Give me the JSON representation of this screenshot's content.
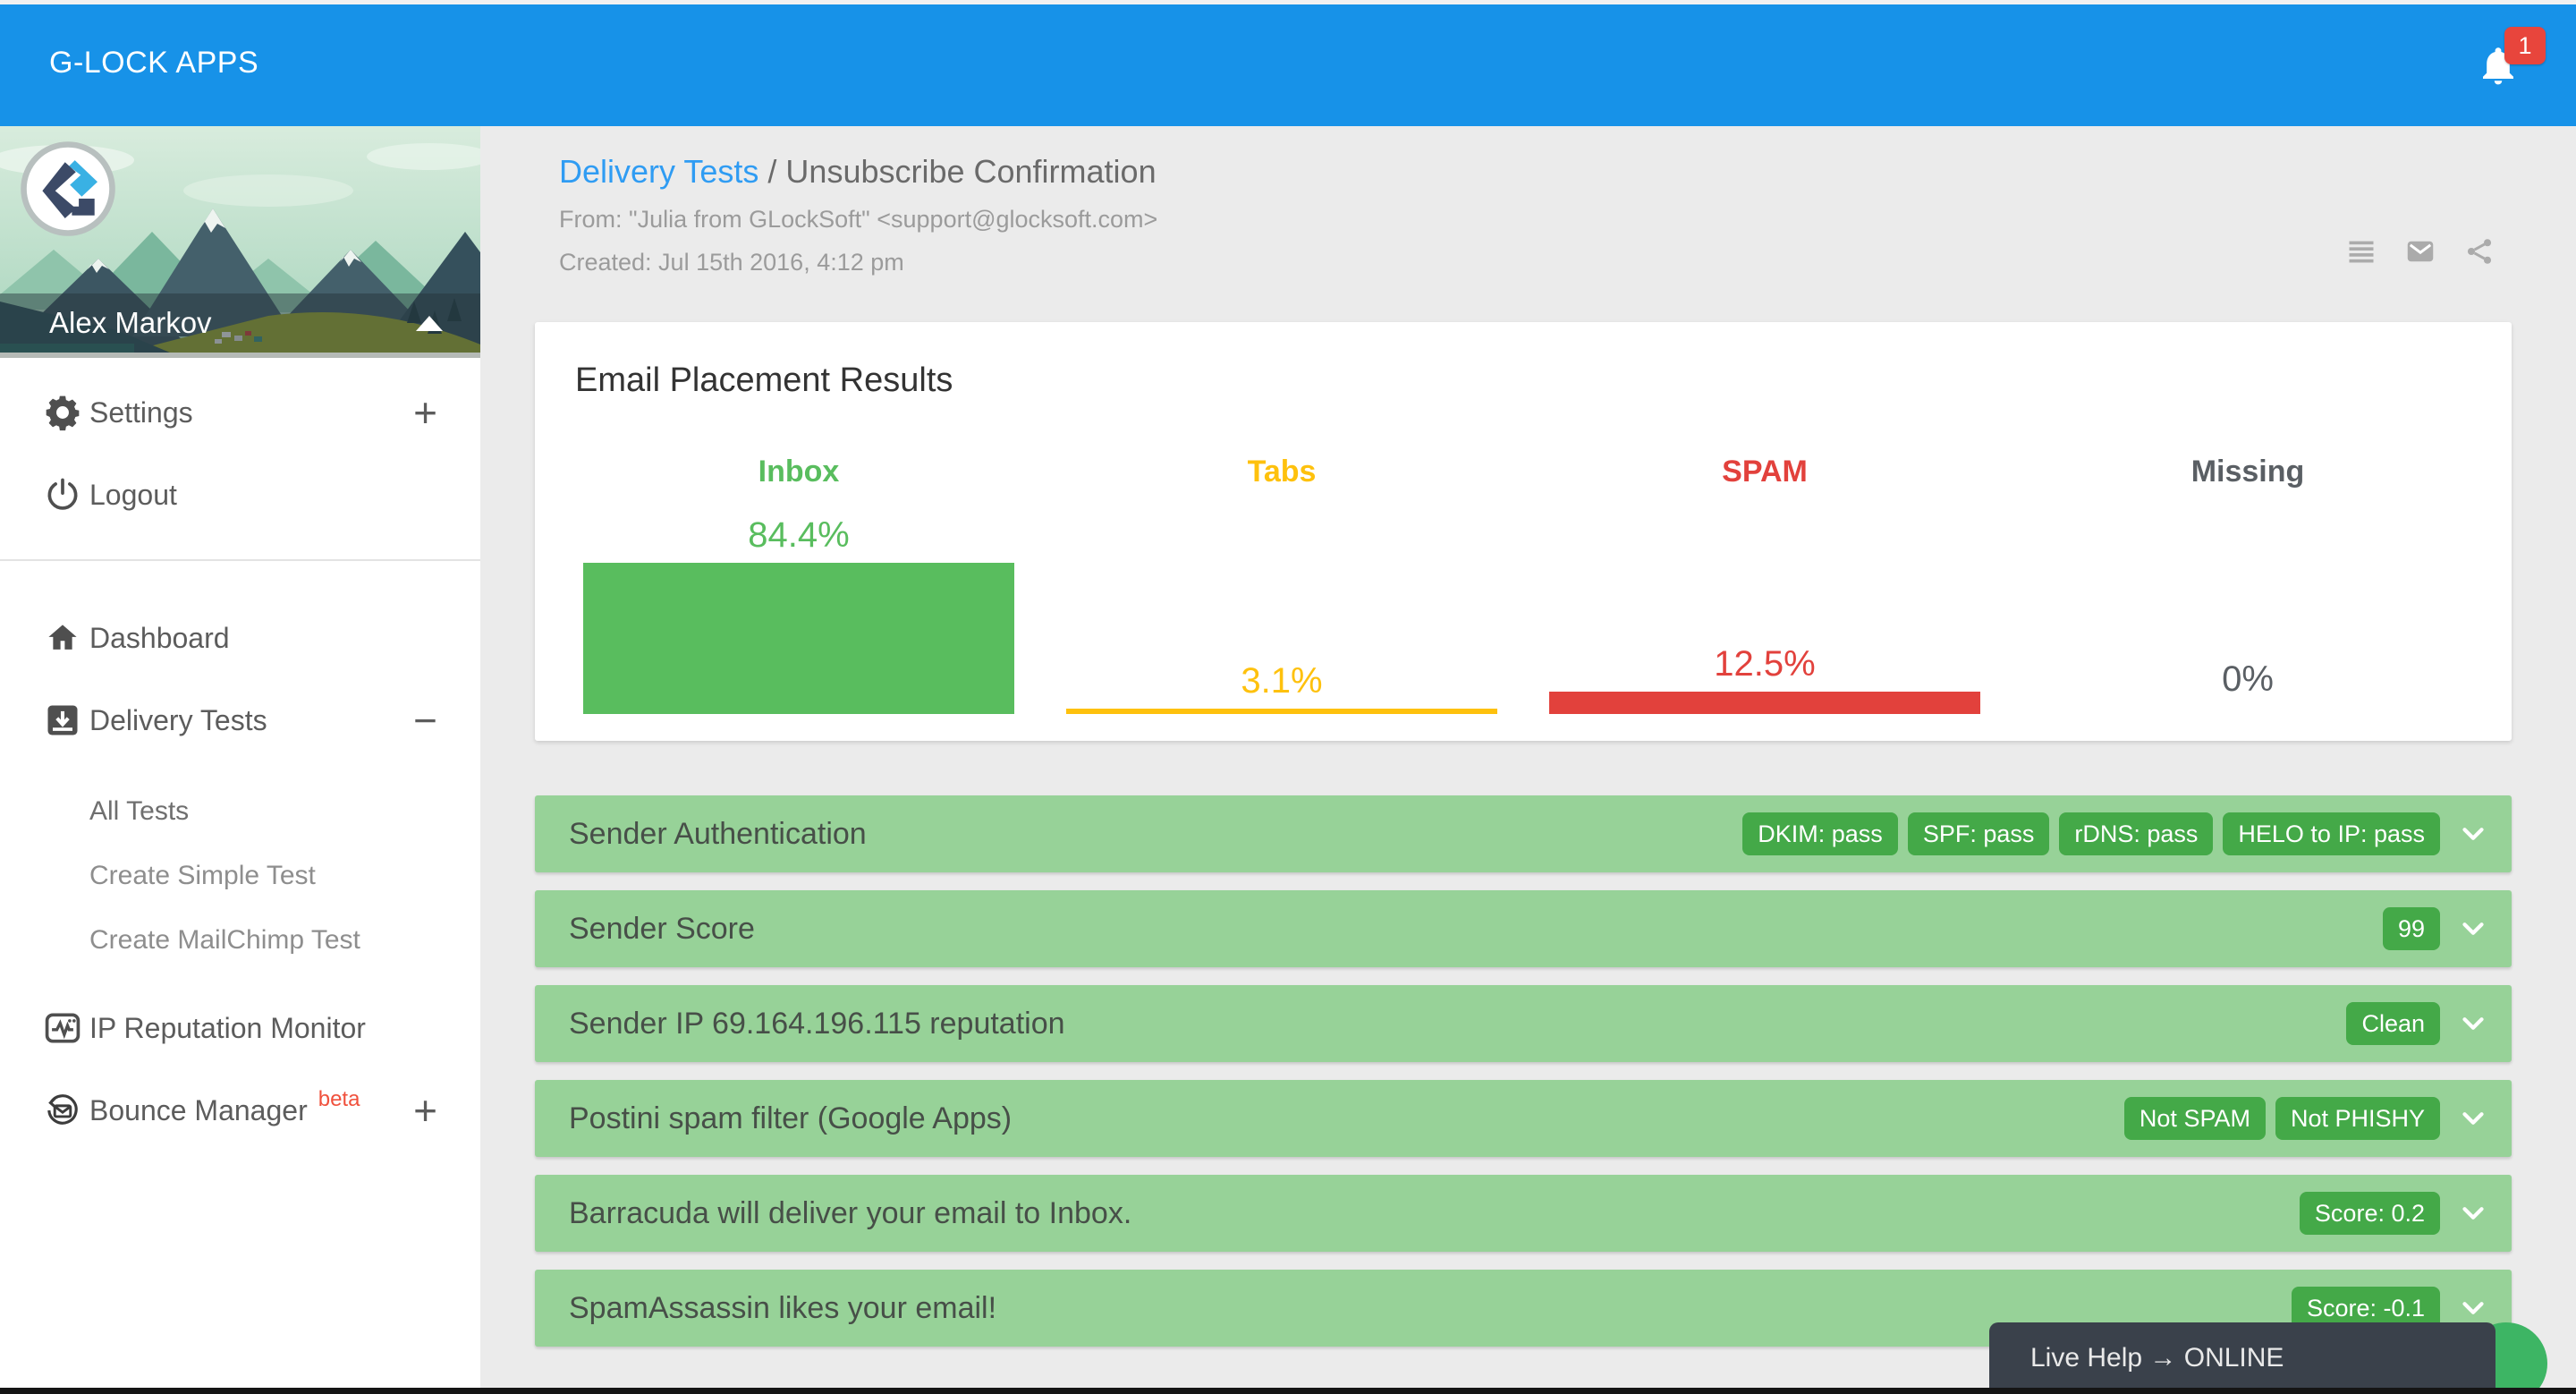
{
  "topbar": {
    "brand": "G-LOCK APPS",
    "notification_count": "1"
  },
  "profile": {
    "name": "Alex Markov"
  },
  "sidebar": {
    "items": [
      {
        "id": "settings",
        "icon": "gear-icon",
        "label": "Settings",
        "expander": "+"
      },
      {
        "id": "logout",
        "icon": "power-icon",
        "label": "Logout"
      },
      {
        "type": "divider"
      },
      {
        "id": "dashboard",
        "icon": "home-icon",
        "label": "Dashboard"
      },
      {
        "id": "delivery-tests",
        "icon": "inbox-down-icon",
        "label": "Delivery Tests",
        "expander": "−"
      },
      {
        "id": "all-tests",
        "type": "sub",
        "label": "All Tests",
        "active": true
      },
      {
        "id": "create-simple-test",
        "type": "sub",
        "label": "Create Simple Test"
      },
      {
        "id": "create-mailchimp-test",
        "type": "sub",
        "label": "Create MailChimp Test"
      },
      {
        "id": "ip-reputation-monitor",
        "icon": "monitor-pulse-icon",
        "label": "IP Reputation Monitor"
      },
      {
        "id": "bounce-manager",
        "icon": "bounce-mail-icon",
        "label": "Bounce Manager",
        "suffix": "beta",
        "expander": "+"
      }
    ]
  },
  "breadcrumb": {
    "link": "Delivery Tests",
    "separator": " / ",
    "current": "Unsubscribe Confirmation"
  },
  "meta": {
    "from": "From: \"Julia from GLockSoft\" <support@glocksoft.com>",
    "created": "Created: Jul 15th 2016, 4:12 pm"
  },
  "toolbar": {
    "icons": [
      "list-icon",
      "mail-icon",
      "share-icon"
    ]
  },
  "chart_data": {
    "type": "bar",
    "title": "Email Placement Results",
    "categories": [
      "Inbox",
      "Tabs",
      "SPAM",
      "Missing"
    ],
    "values": [
      84.4,
      3.1,
      12.5,
      0
    ],
    "value_labels": [
      "84.4%",
      "3.1%",
      "12.5%",
      "0%"
    ],
    "colors": [
      "#59bd5e",
      "#fec10d",
      "#e2413c",
      "#5a5f64"
    ],
    "ylim": [
      0,
      100
    ],
    "xlabel": "",
    "ylabel": "",
    "grid": false,
    "legend": false
  },
  "results_rows": [
    {
      "title": "Sender Authentication",
      "badges": [
        "DKIM: pass",
        "SPF: pass",
        "rDNS: pass",
        "HELO to IP: pass"
      ]
    },
    {
      "title": "Sender Score",
      "badges": [
        "99"
      ]
    },
    {
      "title": "Sender IP 69.164.196.115 reputation",
      "badges": [
        "Clean"
      ]
    },
    {
      "title": "Postini spam filter (Google Apps)",
      "badges": [
        "Not SPAM",
        "Not PHISHY"
      ]
    },
    {
      "title": "Barracuda will deliver your email to Inbox.",
      "badges": [
        "Score: 0.2"
      ]
    },
    {
      "title": "SpamAssassin likes your email!",
      "badges": [
        "Score: -0.1"
      ]
    }
  ],
  "live_help": {
    "label": "Live Help → ONLINE"
  },
  "colors": {
    "header_blue": "#1792e8",
    "row_green": "#97d298",
    "badge_green": "#44a948",
    "link_blue": "#2f9cf3",
    "alert_red": "#e8453c"
  }
}
